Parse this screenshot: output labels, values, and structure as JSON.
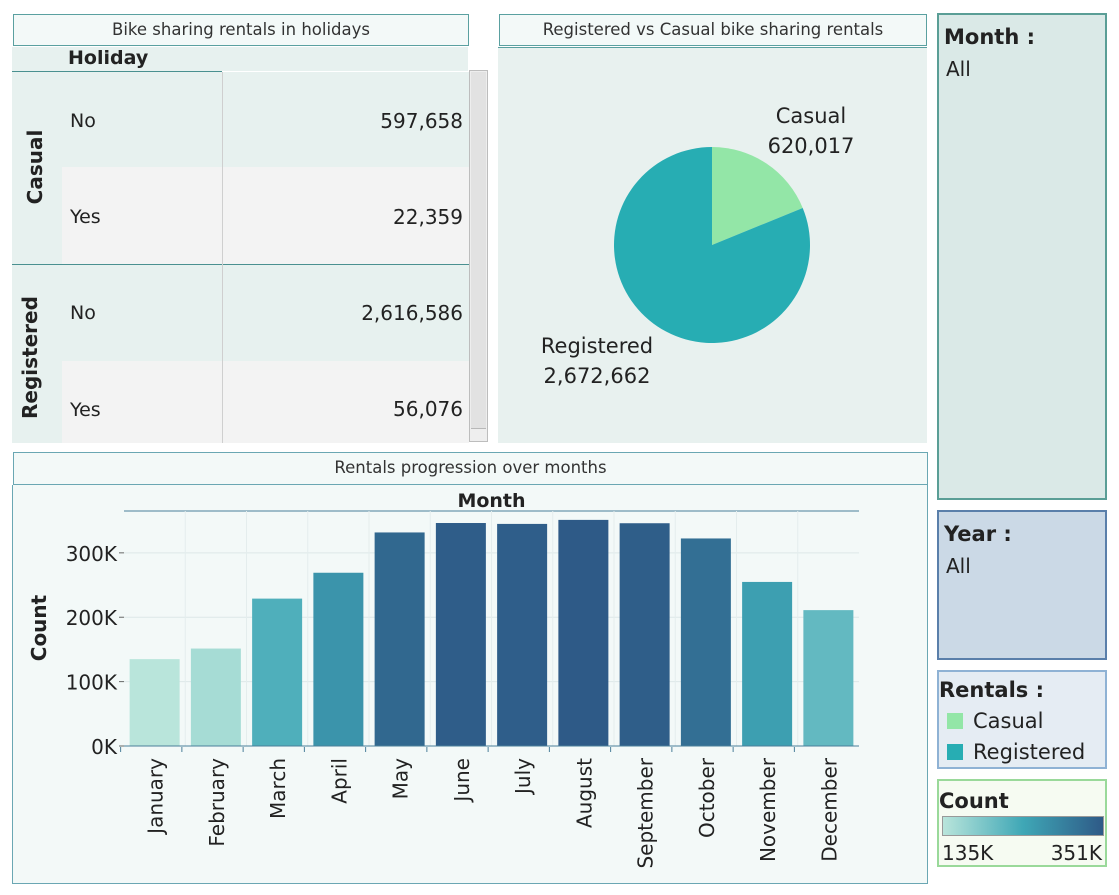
{
  "holiday_table": {
    "title": "Bike sharing rentals in holidays",
    "column_header": "Holiday",
    "groups": [
      {
        "name": "Casual",
        "rows": [
          {
            "label": "No",
            "value": "597,658"
          },
          {
            "label": "Yes",
            "value": "22,359"
          }
        ]
      },
      {
        "name": "Registered",
        "rows": [
          {
            "label": "No",
            "value": "2,616,586"
          },
          {
            "label": "Yes",
            "value": "56,076"
          }
        ]
      }
    ]
  },
  "pie": {
    "title": "Registered vs Casual bike sharing rentals",
    "slices": [
      {
        "name": "Casual",
        "value_label": "620,017",
        "value": 620017,
        "color": "#93e6a7"
      },
      {
        "name": "Registered",
        "value_label": "2,672,662",
        "value": 2672662,
        "color": "#27adb3"
      }
    ]
  },
  "bars": {
    "title": "Rentals progression over months",
    "col_header": "Month",
    "ylabel": "Count",
    "yticks": [
      "300K",
      "200K",
      "100K",
      "0K"
    ],
    "color_min": "#b9e5db",
    "color_max": "#2e5a87"
  },
  "chart_data": {
    "type": "bar",
    "title": "Rentals progression over months",
    "xlabel": "Month",
    "ylabel": "Count",
    "categories": [
      "January",
      "February",
      "March",
      "April",
      "May",
      "June",
      "July",
      "August",
      "September",
      "October",
      "November",
      "December"
    ],
    "values": [
      134933,
      151352,
      228920,
      269094,
      331686,
      346342,
      344948,
      351194,
      345991,
      322352,
      254831,
      211036
    ],
    "ylim": [
      0,
      365000
    ],
    "yticks": [
      0,
      100000,
      200000,
      300000
    ],
    "ytick_labels": [
      "0K",
      "100K",
      "200K",
      "300K"
    ],
    "color_scale": {
      "min": 134933,
      "max": 351194,
      "min_label": "135K",
      "max_label": "351K"
    }
  },
  "filters": {
    "month": {
      "title": "Month :",
      "value": "All"
    },
    "year": {
      "title": "Year :",
      "value": "All"
    }
  },
  "rentals_legend": {
    "title": "Rentals :",
    "items": [
      {
        "label": "Casual",
        "color": "#93e6a7"
      },
      {
        "label": "Registered",
        "color": "#27adb3"
      }
    ]
  },
  "count_legend": {
    "title": "Count",
    "min_label": "135K",
    "max_label": "351K"
  }
}
